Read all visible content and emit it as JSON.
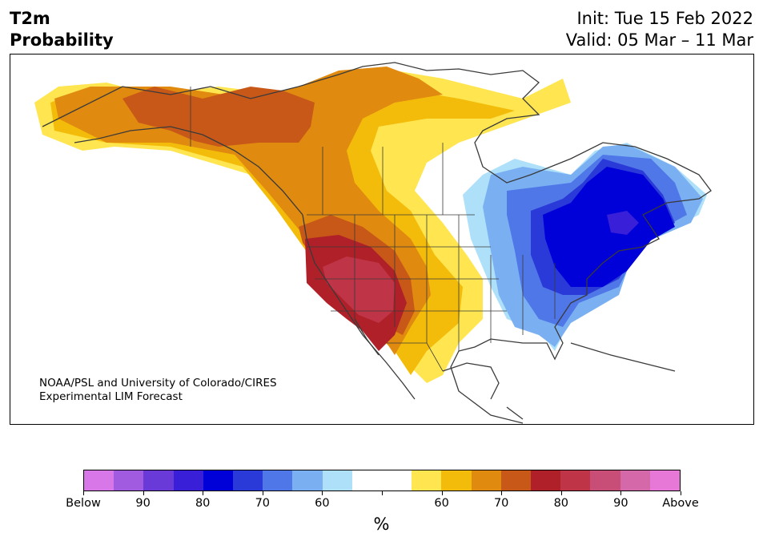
{
  "header": {
    "variable": "T2m",
    "product": "Probability",
    "init": "Init: Tue 15 Feb 2022",
    "valid": "Valid: 05 Mar – 11 Mar"
  },
  "credit": {
    "line1": "NOAA/PSL and University of Colorado/CIRES",
    "line2": "Experimental LIM Forecast"
  },
  "legend": {
    "unit": "%",
    "colors": [
      "#d877e8",
      "#a05be0",
      "#6a3ad8",
      "#3a1fd8",
      "#0000d8",
      "#2a3ad8",
      "#4f77e8",
      "#7ab0f2",
      "#aee0fa",
      "#ffffff",
      "#ffffff",
      "#ffe650",
      "#f4bc0a",
      "#e08a10",
      "#c85818",
      "#b02028",
      "#c03448",
      "#c84e78",
      "#d468a8",
      "#e878d8"
    ],
    "labels": [
      "Below",
      "90",
      "80",
      "70",
      "60",
      "",
      "60",
      "70",
      "80",
      "90",
      "Above"
    ]
  },
  "map_colors": {
    "coast": "#3a3a3a",
    "warm_50": "#ffe650",
    "warm_60": "#f4bc0a",
    "warm_70": "#e08a10",
    "warm_75": "#c85818",
    "warm_80": "#b02028",
    "warm_85": "#c03448",
    "cold_50": "#aee0fa",
    "cold_60": "#7ab0f2",
    "cold_70": "#4f77e8",
    "cold_75": "#2a3ad8",
    "cold_80": "#0000d8",
    "cold_85": "#3a1fd8"
  }
}
